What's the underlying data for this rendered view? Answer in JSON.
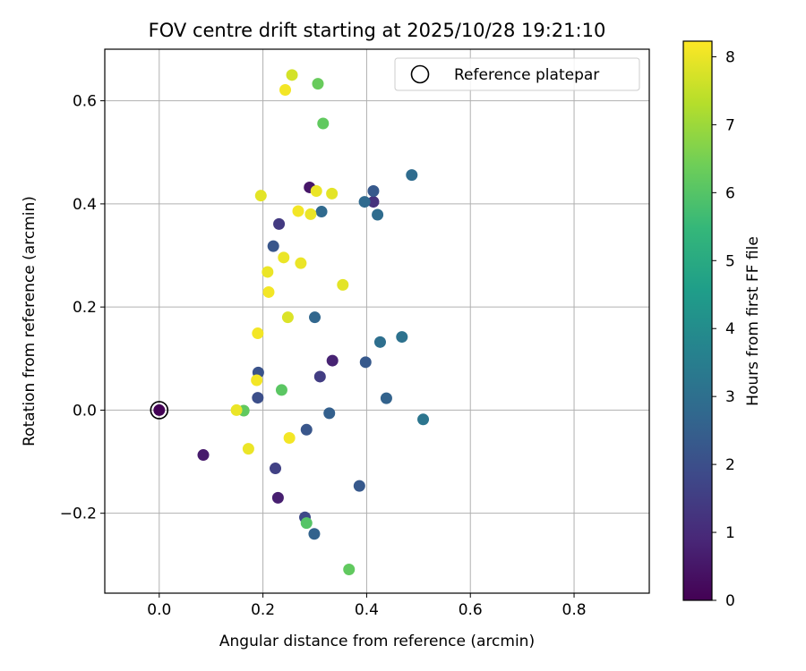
{
  "chart_data": {
    "type": "scatter",
    "title": "FOV centre drift starting at 2025/10/28 19:21:10",
    "xlabel": "Angular distance from reference (arcmin)",
    "ylabel": "Rotation from reference (arcmin)",
    "xlim": [
      -0.105,
      0.945
    ],
    "ylim": [
      -0.355,
      0.7
    ],
    "xticks": [
      0.0,
      0.2,
      0.4,
      0.6,
      0.8
    ],
    "xtick_labels": [
      "0.0",
      "0.2",
      "0.4",
      "0.6",
      "0.8"
    ],
    "yticks": [
      -0.2,
      0.0,
      0.2,
      0.4,
      0.6
    ],
    "ytick_labels": [
      "−0.2",
      "0.0",
      "0.2",
      "0.4",
      "0.6"
    ],
    "grid": true,
    "legend": {
      "position": "top-right",
      "entries": [
        "Reference platepar"
      ]
    },
    "reference_point": {
      "x": 0.0,
      "y": 0.0,
      "label": "Reference platepar"
    },
    "colorbar": {
      "label": "Hours from first FF file",
      "range": [
        0,
        8.23
      ],
      "ticks": [
        0,
        1,
        2,
        3,
        4,
        5,
        6,
        7,
        8
      ],
      "tick_labels": [
        "0",
        "1",
        "2",
        "3",
        "4",
        "5",
        "6",
        "7",
        "8"
      ],
      "colormap": "viridis",
      "stops": [
        "#440154",
        "#482878",
        "#3e4989",
        "#31688e",
        "#26828e",
        "#1f9e89",
        "#35b779",
        "#6ece58",
        "#b5de2b",
        "#fde725"
      ]
    },
    "points": [
      {
        "x": 0.0,
        "y": 0.0,
        "h": 0.05
      },
      {
        "x": 0.085,
        "y": -0.087,
        "h": 0.6
      },
      {
        "x": 0.229,
        "y": -0.17,
        "h": 0.7
      },
      {
        "x": 0.29,
        "y": 0.432,
        "h": 0.5
      },
      {
        "x": 0.334,
        "y": 0.096,
        "h": 0.8
      },
      {
        "x": 0.413,
        "y": 0.404,
        "h": 1.2
      },
      {
        "x": 0.224,
        "y": -0.113,
        "h": 1.6
      },
      {
        "x": 0.31,
        "y": 0.065,
        "h": 1.5
      },
      {
        "x": 0.231,
        "y": 0.361,
        "h": 1.4
      },
      {
        "x": 0.281,
        "y": -0.208,
        "h": 1.8
      },
      {
        "x": 0.19,
        "y": 0.024,
        "h": 2.0
      },
      {
        "x": 0.191,
        "y": 0.073,
        "h": 2.1
      },
      {
        "x": 0.284,
        "y": -0.038,
        "h": 2.2
      },
      {
        "x": 0.22,
        "y": 0.318,
        "h": 2.2
      },
      {
        "x": 0.386,
        "y": -0.147,
        "h": 2.3
      },
      {
        "x": 0.398,
        "y": 0.093,
        "h": 2.3
      },
      {
        "x": 0.413,
        "y": 0.425,
        "h": 2.3
      },
      {
        "x": 0.328,
        "y": -0.006,
        "h": 2.5
      },
      {
        "x": 0.438,
        "y": 0.023,
        "h": 2.6
      },
      {
        "x": 0.299,
        "y": -0.24,
        "h": 2.6
      },
      {
        "x": 0.3,
        "y": 0.18,
        "h": 2.7
      },
      {
        "x": 0.396,
        "y": 0.404,
        "h": 2.8
      },
      {
        "x": 0.313,
        "y": 0.385,
        "h": 2.8
      },
      {
        "x": 0.421,
        "y": 0.379,
        "h": 2.9
      },
      {
        "x": 0.487,
        "y": 0.456,
        "h": 2.9
      },
      {
        "x": 0.426,
        "y": 0.132,
        "h": 3.0
      },
      {
        "x": 0.468,
        "y": 0.142,
        "h": 3.1
      },
      {
        "x": 0.509,
        "y": -0.018,
        "h": 3.2
      },
      {
        "x": 0.284,
        "y": -0.219,
        "h": 6.0
      },
      {
        "x": 0.236,
        "y": 0.039,
        "h": 6.1
      },
      {
        "x": 0.163,
        "y": -0.001,
        "h": 6.2
      },
      {
        "x": 0.366,
        "y": -0.309,
        "h": 6.2
      },
      {
        "x": 0.316,
        "y": 0.556,
        "h": 6.2
      },
      {
        "x": 0.306,
        "y": 0.633,
        "h": 6.3
      },
      {
        "x": 0.256,
        "y": 0.65,
        "h": 7.7
      },
      {
        "x": 0.243,
        "y": 0.621,
        "h": 8.1
      },
      {
        "x": 0.196,
        "y": 0.416,
        "h": 7.9
      },
      {
        "x": 0.303,
        "y": 0.425,
        "h": 8.0
      },
      {
        "x": 0.333,
        "y": 0.42,
        "h": 7.9
      },
      {
        "x": 0.268,
        "y": 0.386,
        "h": 8.1
      },
      {
        "x": 0.292,
        "y": 0.38,
        "h": 8.0
      },
      {
        "x": 0.24,
        "y": 0.296,
        "h": 8.0
      },
      {
        "x": 0.273,
        "y": 0.285,
        "h": 8.0
      },
      {
        "x": 0.209,
        "y": 0.268,
        "h": 8.0
      },
      {
        "x": 0.211,
        "y": 0.229,
        "h": 8.1
      },
      {
        "x": 0.354,
        "y": 0.243,
        "h": 7.9
      },
      {
        "x": 0.248,
        "y": 0.18,
        "h": 7.8
      },
      {
        "x": 0.19,
        "y": 0.149,
        "h": 8.1
      },
      {
        "x": 0.188,
        "y": 0.058,
        "h": 8.1
      },
      {
        "x": 0.149,
        "y": 0.0,
        "h": 8.0
      },
      {
        "x": 0.172,
        "y": -0.075,
        "h": 8.0
      },
      {
        "x": 0.251,
        "y": -0.054,
        "h": 8.1
      }
    ]
  }
}
